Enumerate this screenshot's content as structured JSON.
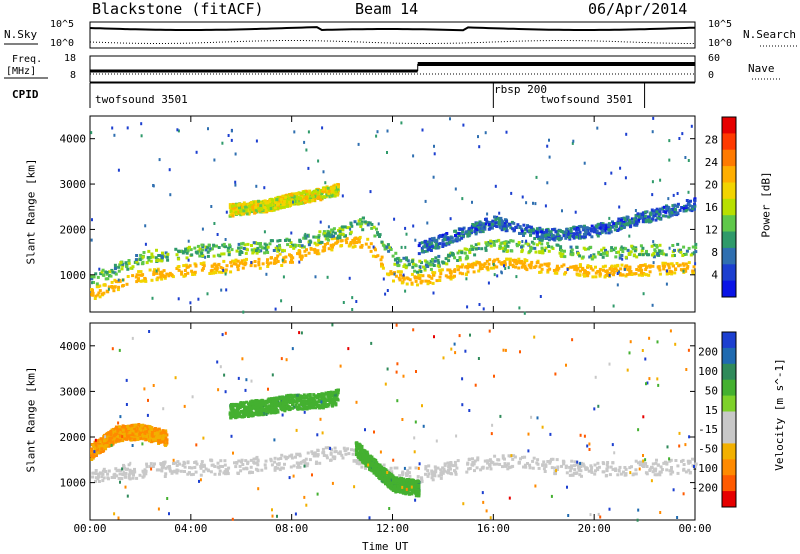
{
  "header": {
    "title": "Blackstone (fitACF)",
    "beam": "Beam 14",
    "date": "06/Apr/2014"
  },
  "strips": {
    "nsky_label": "N.Sky",
    "nsearch_label": "N.Search",
    "noise_ticks_left": [
      "10^5",
      "10^0"
    ],
    "noise_ticks_right": [
      "10^5",
      "10^0"
    ],
    "freq_label": "Freq.",
    "freq_unit": "[MHz]",
    "freq_ticks": [
      "18",
      "8"
    ],
    "nave_label": "Nave",
    "nave_ticks": [
      "60",
      "0"
    ],
    "cpid_label": "CPID",
    "cpid_segments": [
      {
        "label": "twofsound 3501",
        "start_hr": 0,
        "end_hr": 16
      },
      {
        "label": "rbsp 200",
        "start_hr": 16,
        "end_hr": 22
      },
      {
        "label": "twofsound 3501",
        "start_hr": 16,
        "end_hr": 22
      }
    ]
  },
  "chart_data": [
    {
      "type": "heatmap",
      "name": "Power",
      "ylabel": "Slant Range [km]",
      "yticks": [
        "1000",
        "2000",
        "3000",
        "4000"
      ],
      "ylim": [
        180,
        4500
      ],
      "xlim_hours": [
        0,
        24
      ],
      "colorbar_label": "Power [dB]",
      "colorbar_ticks": [
        "28",
        "24",
        "20",
        "16",
        "12",
        "8",
        "4"
      ],
      "colorbar_colors": [
        "#e60000",
        "#ff3a00",
        "#ff7a00",
        "#ffae00",
        "#f2d400",
        "#b8e000",
        "#5fc84a",
        "#2f9a6a",
        "#2f6fb0",
        "#1c3fd0",
        "#0a14e6"
      ],
      "bands": [
        {
          "t": [
            0,
            2,
            4,
            6,
            8,
            10,
            11,
            12,
            13,
            16,
            20,
            24
          ],
          "range": [
            600,
            1000,
            1150,
            1250,
            1400,
            1800,
            1700,
            1000,
            900,
            1300,
            1100,
            1200
          ],
          "value": 24
        },
        {
          "t": [
            0,
            2,
            4,
            6,
            8,
            10,
            11,
            12,
            13,
            16,
            20,
            24
          ],
          "range": [
            900,
            1400,
            1550,
            1600,
            1700,
            2000,
            2200,
            1400,
            1200,
            1700,
            1500,
            1600
          ],
          "value": 12
        },
        {
          "t": [
            5.5,
            7,
            8,
            9,
            9.8
          ],
          "range": [
            2450,
            2550,
            2700,
            2800,
            2900
          ],
          "value": 18
        },
        {
          "t": [
            13,
            16,
            18,
            20,
            22,
            24
          ],
          "range": [
            1600,
            2200,
            1900,
            2000,
            2300,
            2600
          ],
          "value": 6
        }
      ]
    },
    {
      "type": "heatmap",
      "name": "Velocity",
      "ylabel": "Slant Range [km]",
      "yticks": [
        "1000",
        "2000",
        "3000",
        "4000"
      ],
      "ylim": [
        180,
        4500
      ],
      "xlim_hours": [
        0,
        24
      ],
      "colorbar_label": "Velocity [m s^-1]",
      "colorbar_ticks": [
        "200",
        "100",
        "50",
        "15",
        "-15",
        "-50",
        "-100",
        "-200"
      ],
      "colorbar_colors": [
        "#1c3fd0",
        "#1f6ab0",
        "#2f8a5a",
        "#44b030",
        "#7ed12a",
        "#c8c8c8",
        "#c8c8c8",
        "#f2b000",
        "#ff8a00",
        "#ff5a00",
        "#e60000"
      ],
      "bands": [
        {
          "t": [
            0,
            2,
            4,
            6,
            8,
            10,
            12,
            13,
            16,
            20,
            24
          ],
          "range": [
            1200,
            1300,
            1350,
            1400,
            1500,
            1700,
            1200,
            1200,
            1500,
            1300,
            1400
          ],
          "value": 0
        },
        {
          "t": [
            0,
            1,
            2,
            3
          ],
          "range": [
            1700,
            2100,
            2150,
            2000
          ],
          "value": -60
        },
        {
          "t": [
            5.5,
            7,
            8,
            9,
            9.8
          ],
          "range": [
            2600,
            2700,
            2800,
            2800,
            2900
          ],
          "value": 30
        },
        {
          "t": [
            10.5,
            11,
            12,
            13
          ],
          "range": [
            1800,
            1500,
            1000,
            900
          ],
          "value": 30
        }
      ]
    }
  ],
  "xaxis": {
    "label": "Time UT",
    "ticks": [
      "00:00",
      "04:00",
      "08:00",
      "12:00",
      "16:00",
      "20:00",
      "00:00"
    ]
  }
}
